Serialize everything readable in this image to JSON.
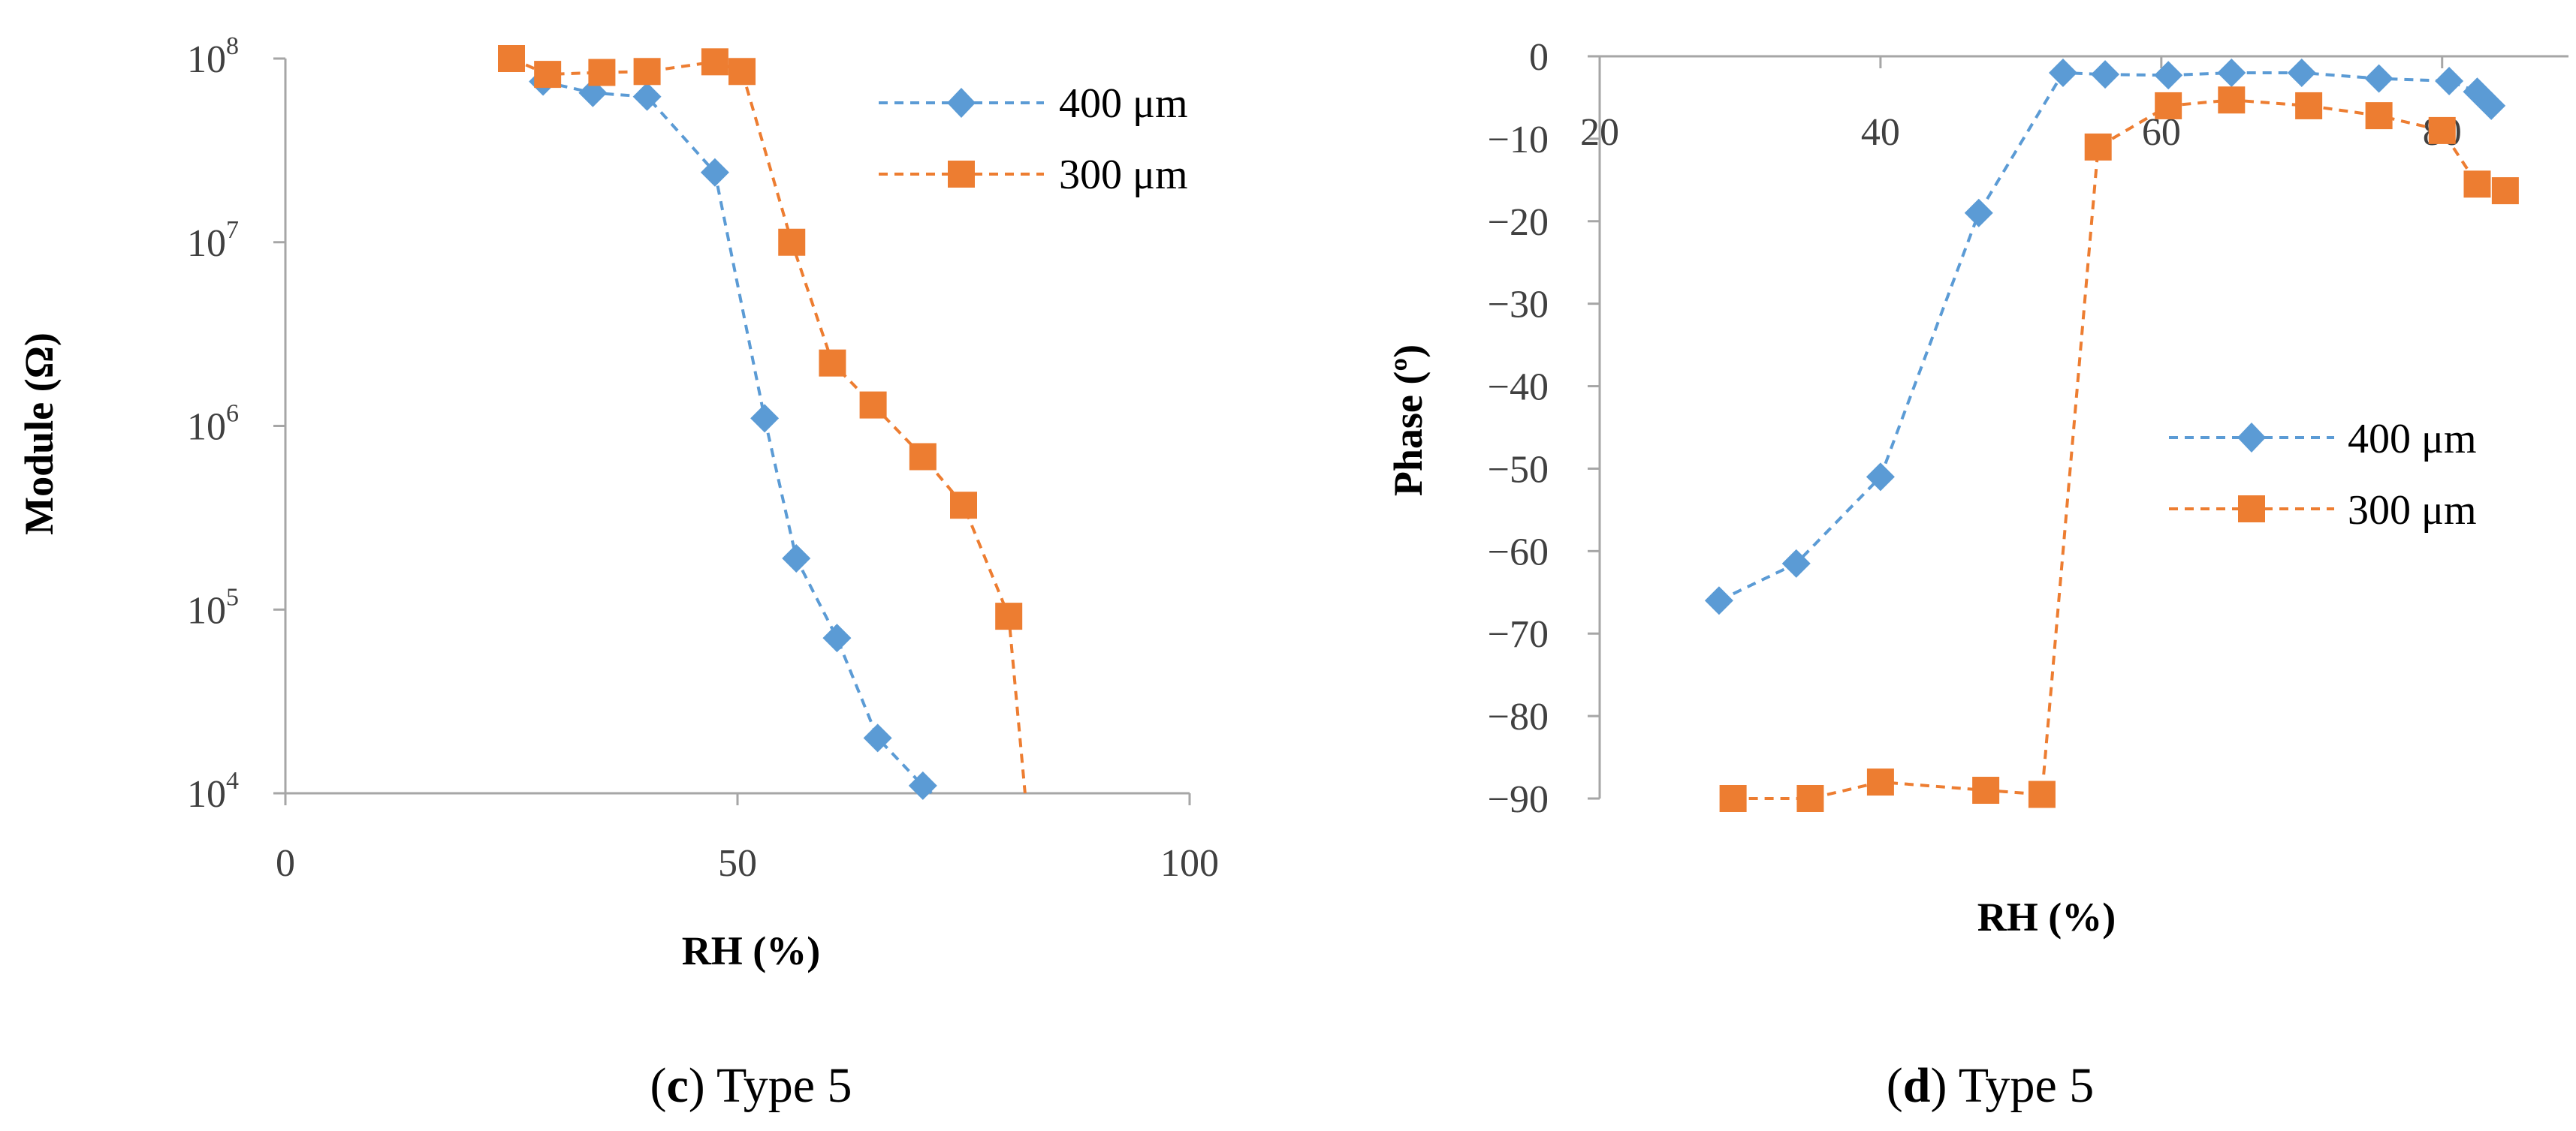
{
  "colors": {
    "series_400": "#5b9bd5",
    "series_300": "#ed7d31",
    "axis": "#a6a6a6",
    "text": "#404040"
  },
  "chart_data": [
    {
      "id": "c",
      "type": "line",
      "yscale": "log",
      "title": "",
      "xlabel": "RH (%)",
      "ylabel": "Module (Ω)",
      "xlim": [
        0,
        100
      ],
      "ylim": [
        10000,
        100000000
      ],
      "xticks": [
        0,
        50,
        100
      ],
      "yticks": [
        {
          "value": 10000,
          "base": "10",
          "exp": "4"
        },
        {
          "value": 100000,
          "base": "10",
          "exp": "5"
        },
        {
          "value": 1000000,
          "base": "10",
          "exp": "6"
        },
        {
          "value": 10000000,
          "base": "10",
          "exp": "7"
        },
        {
          "value": 100000000,
          "base": "10",
          "exp": "8"
        }
      ],
      "grid": false,
      "legend_position": "top-right",
      "caption": {
        "label": "c",
        "text": "Type 5"
      },
      "series": [
        {
          "name": "400 μm",
          "marker": "diamond",
          "color": "#5b9bd5",
          "points": [
            [
              28.5,
              75000000
            ],
            [
              34,
              65000000
            ],
            [
              40,
              62000000
            ],
            [
              47.5,
              24000000
            ],
            [
              53,
              1100000
            ],
            [
              56.5,
              190000
            ],
            [
              61,
              70000
            ],
            [
              65.5,
              20000
            ],
            [
              70.5,
              11000
            ]
          ],
          "tail": [
            [
              71.5,
              10000
            ]
          ]
        },
        {
          "name": "300 μm",
          "marker": "square",
          "color": "#ed7d31",
          "points": [
            [
              25,
              100000000
            ],
            [
              29,
              82000000
            ],
            [
              35,
              84000000
            ],
            [
              40,
              85000000
            ],
            [
              47.5,
              96000000
            ],
            [
              50.5,
              85000000
            ],
            [
              56,
              10000000
            ],
            [
              60.5,
              2200000
            ],
            [
              65,
              1300000
            ],
            [
              70.5,
              680000
            ],
            [
              75,
              370000
            ],
            [
              80,
              92000
            ]
          ],
          "tail": [
            [
              81.8,
              10000
            ]
          ]
        }
      ]
    },
    {
      "id": "d",
      "type": "line",
      "title": "",
      "xlabel": "RH (%)",
      "ylabel": "Phase (º)",
      "xlim": [
        20,
        89
      ],
      "ylim": [
        -90,
        0
      ],
      "xticks": [
        20,
        40,
        60,
        80
      ],
      "yticks": [
        0,
        -10,
        -20,
        -30,
        -40,
        -50,
        -60,
        -70,
        -80,
        -90
      ],
      "grid": false,
      "legend_position": "center-right",
      "caption": {
        "label": "d",
        "text": "Type 5"
      },
      "series": [
        {
          "name": "400 μm",
          "marker": "diamond",
          "color": "#5b9bd5",
          "points": [
            [
              28.5,
              -66
            ],
            [
              34,
              -61.5
            ],
            [
              40,
              -51
            ],
            [
              47,
              -19
            ],
            [
              53,
              -2
            ],
            [
              56,
              -2.2
            ],
            [
              60.5,
              -2.3
            ],
            [
              65,
              -2
            ],
            [
              70,
              -2
            ],
            [
              75.5,
              -2.7
            ],
            [
              80.5,
              -3
            ],
            [
              82.5,
              -4.3
            ],
            [
              83.5,
              -6
            ]
          ]
        },
        {
          "name": "300 μm",
          "marker": "square",
          "color": "#ed7d31",
          "points": [
            [
              29.5,
              -90
            ],
            [
              35,
              -90
            ],
            [
              40,
              -88
            ],
            [
              47.5,
              -89
            ],
            [
              51.5,
              -89.5
            ],
            [
              55.5,
              -11
            ],
            [
              60.5,
              -6
            ],
            [
              65,
              -5.3
            ],
            [
              70.5,
              -6
            ],
            [
              75.5,
              -7.2
            ],
            [
              80,
              -9
            ],
            [
              82.5,
              -15.5
            ],
            [
              84.5,
              -16.3
            ]
          ]
        }
      ]
    }
  ]
}
